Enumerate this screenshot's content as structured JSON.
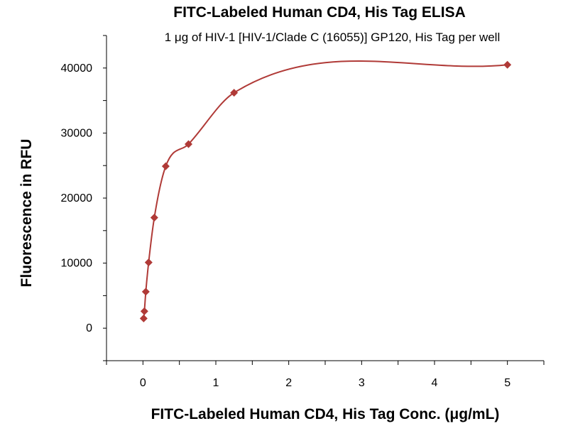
{
  "chart_data": {
    "type": "scatter",
    "title": "FITC-Labeled Human CD4, His Tag ELISA",
    "subtitle": "1 μg of HIV-1 [HIV-1/Clade C (16055)] GP120, His Tag per well",
    "xlabel": "FITC-Labeled Human CD4, His Tag Conc. (μg/mL)",
    "ylabel": "Fluorescence in RFU",
    "xlim": [
      -0.5,
      5.5
    ],
    "ylim": [
      -5000,
      45000
    ],
    "x_ticks": [
      0,
      1,
      2,
      3,
      4,
      5
    ],
    "y_ticks": [
      0,
      10000,
      20000,
      30000,
      40000
    ],
    "grid": false,
    "colors": {
      "series": "#b03a37"
    },
    "series": [
      {
        "marker": "diamond",
        "fit": "curve",
        "points": [
          {
            "x": 0.0098,
            "y": 1500
          },
          {
            "x": 0.0195,
            "y": 2600
          },
          {
            "x": 0.039,
            "y": 5600
          },
          {
            "x": 0.078,
            "y": 10100
          },
          {
            "x": 0.156,
            "y": 17000
          },
          {
            "x": 0.3125,
            "y": 24900
          },
          {
            "x": 0.625,
            "y": 28300
          },
          {
            "x": 1.25,
            "y": 36200
          },
          {
            "x": 5,
            "y": 40500
          }
        ]
      }
    ]
  }
}
